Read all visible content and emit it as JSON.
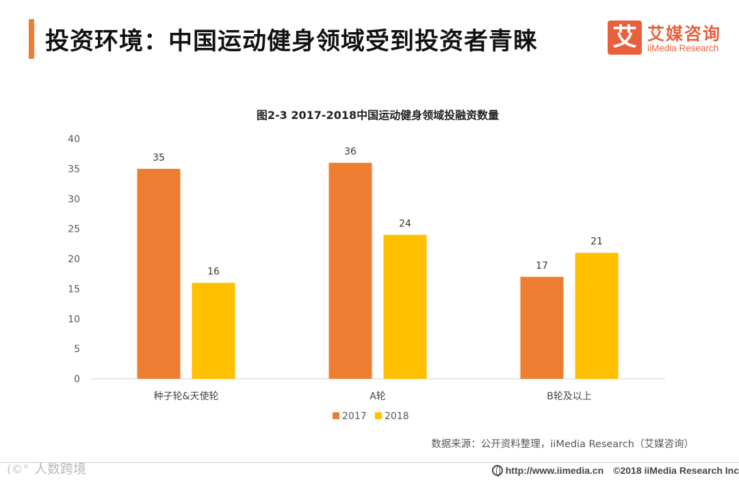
{
  "header": {
    "title": "投资环境：中国运动健身领域受到投资者青睐"
  },
  "logo": {
    "mark": "艾",
    "name_cn": "艾媒咨询",
    "name_en": "iiMedia Research"
  },
  "chart_data": {
    "type": "bar",
    "title": "图2-3 2017-2018中国运动健身领域投融资数量",
    "categories": [
      "种子轮&天使轮",
      "A轮",
      "B轮及以上"
    ],
    "series": [
      {
        "name": "2017",
        "values": [
          35,
          36,
          17
        ],
        "color": "#ed7d31"
      },
      {
        "name": "2018",
        "values": [
          16,
          24,
          21
        ],
        "color": "#ffc000"
      }
    ],
    "ylim": [
      0,
      40
    ],
    "yticks": [
      0,
      5,
      10,
      15,
      20,
      25,
      30,
      35,
      40
    ],
    "xlabel": "",
    "ylabel": "",
    "legend_position": "bottom",
    "grid": false
  },
  "source": "数据来源：公开资料整理，iiMedia Research（艾媒咨询）",
  "watermark": {
    "icon": "weibo-icon",
    "text": "人数跨境"
  },
  "footer": {
    "url": "http://www.iimedia.cn",
    "copyright": "©2018  iiMedia Research  Inc"
  }
}
